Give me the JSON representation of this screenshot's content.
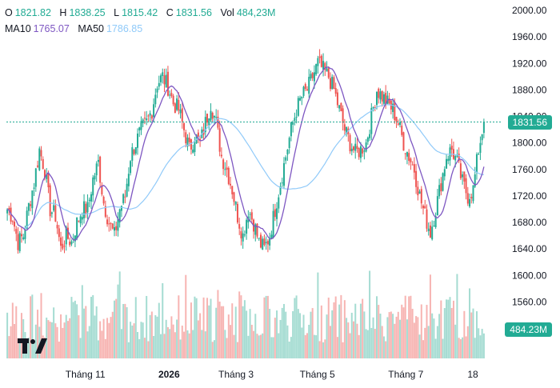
{
  "legend": {
    "o_label": "O",
    "o_value": "1821.82",
    "h_label": "H",
    "h_value": "1838.25",
    "l_label": "L",
    "l_value": "1815.42",
    "c_label": "C",
    "c_value": "1831.56",
    "vol_label": "Vol",
    "vol_value": "484,23M",
    "ma10_label": "MA10",
    "ma10_value": "1765.07",
    "ma50_label": "MA50",
    "ma50_value": "1786.85"
  },
  "price_tag": "1831.56",
  "volume_tag": "484.23M",
  "colors": {
    "up": "#22ab94",
    "down": "#ef5350",
    "up_volume": "#a5dcd2",
    "down_volume": "#f7b4b2",
    "ma10": "#7e57c2",
    "ma50": "#90caf9",
    "last_price_line": "#22ab94"
  },
  "chart_data": {
    "type": "candlestick",
    "y_ticks": [
      "2000.00",
      "1960.00",
      "1920.00",
      "1880.00",
      "1840.00",
      "1800.00",
      "1760.00",
      "1720.00",
      "1680.00",
      "1640.00",
      "1600.00",
      "1560.00",
      "1520.00"
    ],
    "x_ticks": [
      "Tháng 11",
      "2026",
      "Tháng 3",
      "Tháng 5",
      "Tháng 7",
      "18"
    ],
    "ylim": [
      1505,
      2000
    ],
    "grid": false,
    "last_price": 1831.56,
    "close_path": [
      1700,
      1688,
      1650,
      1660,
      1705,
      1740,
      1790,
      1760,
      1700,
      1690,
      1640,
      1660,
      1650,
      1680,
      1700,
      1700,
      1745,
      1770,
      1710,
      1680,
      1660,
      1700,
      1720,
      1780,
      1800,
      1820,
      1830,
      1850,
      1890,
      1900,
      1885,
      1860,
      1850,
      1820,
      1790,
      1810,
      1800,
      1830,
      1860,
      1830,
      1780,
      1760,
      1730,
      1690,
      1660,
      1700,
      1680,
      1650,
      1640,
      1660,
      1700,
      1740,
      1780,
      1820,
      1850,
      1870,
      1880,
      1900,
      1920,
      1910,
      1900,
      1880,
      1850,
      1820,
      1800,
      1785,
      1790,
      1800,
      1840,
      1880,
      1870,
      1860,
      1850,
      1830,
      1800,
      1780,
      1760,
      1720,
      1690,
      1665,
      1700,
      1740,
      1780,
      1790,
      1770,
      1740,
      1720,
      1730,
      1790,
      1832
    ]
  }
}
